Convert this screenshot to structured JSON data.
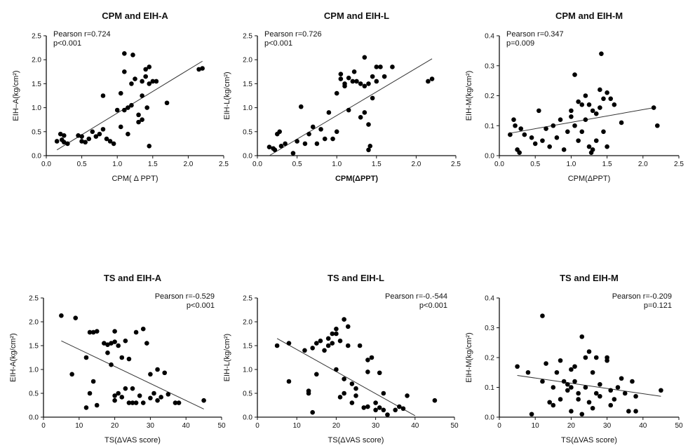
{
  "chart_data": [
    {
      "type": "scatter",
      "title": "CPM and EIH-A",
      "xlabel": "CPM( Δ PPT)",
      "ylabel": "EIH–A(kg/cm²)",
      "xlim": [
        0,
        2.5
      ],
      "ylim": [
        0,
        2.5
      ],
      "xticks": [
        "0.0",
        "0.5",
        "1.0",
        "1.5",
        "2.0",
        "2.5"
      ],
      "yticks": [
        "0.0",
        "0.5",
        "1.0",
        "1.5",
        "2.0",
        "2.5"
      ],
      "stat1": "Pearson r=0.724",
      "stat2": "p<0.001",
      "annot_align": "left",
      "trend": [
        [
          0.15,
          0.12
        ],
        [
          2.2,
          1.97
        ]
      ],
      "points": [
        [
          0.15,
          0.3
        ],
        [
          0.2,
          0.45
        ],
        [
          0.22,
          0.33
        ],
        [
          0.25,
          0.42
        ],
        [
          0.25,
          0.28
        ],
        [
          0.3,
          0.25
        ],
        [
          0.45,
          0.42
        ],
        [
          0.5,
          0.3
        ],
        [
          0.5,
          0.4
        ],
        [
          0.55,
          0.28
        ],
        [
          0.6,
          0.35
        ],
        [
          0.65,
          0.5
        ],
        [
          0.7,
          0.4
        ],
        [
          0.75,
          0.45
        ],
        [
          0.8,
          1.25
        ],
        [
          0.8,
          0.55
        ],
        [
          0.85,
          0.35
        ],
        [
          0.9,
          0.3
        ],
        [
          0.95,
          0.25
        ],
        [
          1.0,
          0.95
        ],
        [
          1.05,
          0.6
        ],
        [
          1.05,
          1.3
        ],
        [
          1.1,
          1.75
        ],
        [
          1.1,
          2.13
        ],
        [
          1.1,
          0.95
        ],
        [
          1.15,
          1.0
        ],
        [
          1.15,
          0.45
        ],
        [
          1.2,
          1.05
        ],
        [
          1.2,
          1.5
        ],
        [
          1.22,
          2.1
        ],
        [
          1.25,
          1.6
        ],
        [
          1.3,
          0.85
        ],
        [
          1.3,
          0.7
        ],
        [
          1.35,
          1.25
        ],
        [
          1.35,
          1.55
        ],
        [
          1.35,
          0.75
        ],
        [
          1.4,
          1.8
        ],
        [
          1.4,
          1.65
        ],
        [
          1.42,
          1.0
        ],
        [
          1.45,
          1.85
        ],
        [
          1.45,
          1.5
        ],
        [
          1.45,
          0.2
        ],
        [
          1.5,
          1.55
        ],
        [
          1.55,
          1.55
        ],
        [
          1.7,
          1.1
        ],
        [
          2.15,
          1.8
        ],
        [
          2.2,
          1.82
        ]
      ]
    },
    {
      "type": "scatter",
      "title": "CPM and EIH-L",
      "xlabel": "CPM(ΔPPT)",
      "ylabel": "EIH-L(kg/cm²)",
      "xlim": [
        0,
        2.5
      ],
      "ylim": [
        0,
        2.5
      ],
      "xticks": [
        "0.0",
        "0.5",
        "1.0",
        "1.5",
        "2.0",
        "2.5"
      ],
      "yticks": [
        "0.0",
        "0.5",
        "1.0",
        "1.5",
        "2.0",
        "2.5"
      ],
      "stat1": "Pearson r=0.726",
      "stat2": "p<0.001",
      "annot_align": "left",
      "trend": [
        [
          0.15,
          0.0
        ],
        [
          2.2,
          2.02
        ]
      ],
      "points": [
        [
          0.15,
          0.18
        ],
        [
          0.2,
          0.15
        ],
        [
          0.22,
          0.12
        ],
        [
          0.25,
          0.45
        ],
        [
          0.28,
          0.5
        ],
        [
          0.3,
          0.2
        ],
        [
          0.35,
          0.25
        ],
        [
          0.45,
          0.05
        ],
        [
          0.5,
          0.3
        ],
        [
          0.55,
          1.02
        ],
        [
          0.6,
          0.25
        ],
        [
          0.65,
          0.45
        ],
        [
          0.7,
          0.6
        ],
        [
          0.75,
          0.25
        ],
        [
          0.8,
          0.55
        ],
        [
          0.85,
          0.35
        ],
        [
          0.9,
          0.9
        ],
        [
          0.95,
          0.35
        ],
        [
          1.0,
          0.5
        ],
        [
          1.0,
          1.3
        ],
        [
          1.05,
          1.6
        ],
        [
          1.05,
          1.7
        ],
        [
          1.1,
          1.45
        ],
        [
          1.1,
          1.5
        ],
        [
          1.15,
          0.95
        ],
        [
          1.15,
          1.62
        ],
        [
          1.2,
          1.55
        ],
        [
          1.22,
          1.75
        ],
        [
          1.25,
          1.55
        ],
        [
          1.3,
          0.8
        ],
        [
          1.3,
          1.5
        ],
        [
          1.35,
          2.05
        ],
        [
          1.35,
          1.45
        ],
        [
          1.4,
          0.65
        ],
        [
          1.4,
          1.5
        ],
        [
          1.42,
          0.2
        ],
        [
          1.45,
          1.2
        ],
        [
          1.45,
          1.65
        ],
        [
          1.5,
          1.85
        ],
        [
          1.5,
          1.55
        ],
        [
          1.55,
          1.85
        ],
        [
          1.6,
          1.65
        ],
        [
          1.7,
          1.85
        ],
        [
          2.15,
          1.55
        ],
        [
          2.2,
          1.6
        ],
        [
          1.4,
          0.12
        ],
        [
          1.35,
          0.9
        ]
      ]
    },
    {
      "type": "scatter",
      "title": "CPM and EIH-M",
      "xlabel": "CPM(ΔPPT)",
      "ylabel": "EIH-M(kg/cm²)",
      "xlim": [
        0,
        2.5
      ],
      "ylim": [
        0,
        0.4
      ],
      "xticks": [
        "0.0",
        "0.5",
        "1.0",
        "1.5",
        "2.0",
        "2.5"
      ],
      "yticks": [
        "0.0",
        "0.1",
        "0.2",
        "0.3",
        "0.4"
      ],
      "stat1": "Pearson r=0.347",
      "stat2": "p=0.009",
      "annot_align": "left",
      "trend": [
        [
          0.15,
          0.075
        ],
        [
          2.15,
          0.16
        ]
      ],
      "points": [
        [
          0.15,
          0.07
        ],
        [
          0.2,
          0.12
        ],
        [
          0.22,
          0.1
        ],
        [
          0.25,
          0.02
        ],
        [
          0.28,
          0.01
        ],
        [
          0.3,
          0.09
        ],
        [
          0.35,
          0.07
        ],
        [
          0.45,
          0.06
        ],
        [
          0.5,
          0.04
        ],
        [
          0.55,
          0.15
        ],
        [
          0.6,
          0.05
        ],
        [
          0.65,
          0.09
        ],
        [
          0.7,
          0.03
        ],
        [
          0.75,
          0.1
        ],
        [
          0.8,
          0.06
        ],
        [
          0.85,
          0.12
        ],
        [
          0.9,
          0.02
        ],
        [
          0.95,
          0.08
        ],
        [
          1.0,
          0.15
        ],
        [
          1.0,
          0.13
        ],
        [
          1.05,
          0.27
        ],
        [
          1.05,
          0.1
        ],
        [
          1.1,
          0.18
        ],
        [
          1.1,
          0.05
        ],
        [
          1.15,
          0.17
        ],
        [
          1.15,
          0.08
        ],
        [
          1.2,
          0.2
        ],
        [
          1.2,
          0.12
        ],
        [
          1.25,
          0.03
        ],
        [
          1.28,
          0.01
        ],
        [
          1.3,
          0.15
        ],
        [
          1.3,
          0.02
        ],
        [
          1.35,
          0.14
        ],
        [
          1.35,
          0.05
        ],
        [
          1.4,
          0.22
        ],
        [
          1.4,
          0.16
        ],
        [
          1.42,
          0.34
        ],
        [
          1.45,
          0.19
        ],
        [
          1.45,
          0.08
        ],
        [
          1.5,
          0.03
        ],
        [
          1.5,
          0.21
        ],
        [
          1.55,
          0.19
        ],
        [
          1.6,
          0.17
        ],
        [
          1.7,
          0.11
        ],
        [
          2.15,
          0.16
        ],
        [
          2.2,
          0.1
        ],
        [
          1.25,
          0.17
        ]
      ]
    },
    {
      "type": "scatter",
      "title": "TS and EIH-A",
      "xlabel": "TS(ΔVAS score)",
      "ylabel": "EIH-A(kg/cm²)",
      "xlim": [
        0,
        50
      ],
      "ylim": [
        0,
        2.5
      ],
      "xticks": [
        "0",
        "10",
        "20",
        "30",
        "40",
        "50"
      ],
      "yticks": [
        "0.0",
        "0.5",
        "1.0",
        "1.5",
        "2.0",
        "2.5"
      ],
      "stat1": "Pearson r=-0.529",
      "stat2": "p<0.001",
      "annot_align": "right",
      "trend": [
        [
          5,
          1.6
        ],
        [
          45,
          0.17
        ]
      ],
      "points": [
        [
          5,
          2.13
        ],
        [
          8,
          0.9
        ],
        [
          9,
          2.08
        ],
        [
          12,
          1.25
        ],
        [
          12,
          0.2
        ],
        [
          13,
          0.5
        ],
        [
          13,
          1.78
        ],
        [
          14,
          0.75
        ],
        [
          14,
          1.78
        ],
        [
          15,
          1.8
        ],
        [
          15,
          0.25
        ],
        [
          17,
          1.55
        ],
        [
          18,
          1.52
        ],
        [
          18,
          1.35
        ],
        [
          19,
          1.55
        ],
        [
          19,
          1.1
        ],
        [
          20,
          1.58
        ],
        [
          20,
          1.8
        ],
        [
          20,
          0.35
        ],
        [
          20,
          0.45
        ],
        [
          21,
          0.5
        ],
        [
          21,
          1.5
        ],
        [
          22,
          0.42
        ],
        [
          22,
          1.25
        ],
        [
          23,
          0.6
        ],
        [
          23,
          1.6
        ],
        [
          24,
          0.3
        ],
        [
          24,
          1.22
        ],
        [
          25,
          0.6
        ],
        [
          25,
          0.3
        ],
        [
          26,
          1.78
        ],
        [
          26,
          0.3
        ],
        [
          27,
          0.45
        ],
        [
          28,
          1.85
        ],
        [
          28,
          0.3
        ],
        [
          30,
          0.4
        ],
        [
          30,
          0.9
        ],
        [
          31,
          0.5
        ],
        [
          32,
          0.35
        ],
        [
          32,
          1.0
        ],
        [
          33,
          0.42
        ],
        [
          34,
          0.93
        ],
        [
          35,
          0.48
        ],
        [
          37,
          0.3
        ],
        [
          38,
          0.3
        ],
        [
          45,
          0.35
        ],
        [
          29,
          1.55
        ]
      ]
    },
    {
      "type": "scatter",
      "title": "TS and EIH-L",
      "xlabel": "TS(ΔVAS score)",
      "ylabel": "EIH-L(kg/cm²)",
      "xlim": [
        0,
        50
      ],
      "ylim": [
        0,
        2.5
      ],
      "xticks": [
        "0",
        "10",
        "20",
        "30",
        "40",
        "50"
      ],
      "yticks": [
        "0.0",
        "0.5",
        "1.0",
        "1.5",
        "2.0",
        "2.5"
      ],
      "stat1": "Pearson r=-0.-544",
      "stat2": "p<0.001",
      "annot_align": "right",
      "trend": [
        [
          5,
          1.65
        ],
        [
          40,
          0.03
        ]
      ],
      "points": [
        [
          5,
          1.5
        ],
        [
          8,
          0.75
        ],
        [
          8,
          1.55
        ],
        [
          12,
          1.4
        ],
        [
          13,
          0.55
        ],
        [
          13,
          0.5
        ],
        [
          14,
          1.45
        ],
        [
          14,
          0.1
        ],
        [
          15,
          1.55
        ],
        [
          15,
          0.9
        ],
        [
          16,
          1.6
        ],
        [
          17,
          1.4
        ],
        [
          18,
          1.5
        ],
        [
          18,
          1.65
        ],
        [
          19,
          1.55
        ],
        [
          19,
          1.75
        ],
        [
          20,
          1.85
        ],
        [
          20,
          1.75
        ],
        [
          20,
          1.0
        ],
        [
          21,
          1.6
        ],
        [
          21,
          0.42
        ],
        [
          22,
          2.05
        ],
        [
          22,
          0.5
        ],
        [
          23,
          1.9
        ],
        [
          23,
          1.5
        ],
        [
          24,
          0.7
        ],
        [
          24,
          0.3
        ],
        [
          25,
          0.45
        ],
        [
          25,
          0.6
        ],
        [
          26,
          1.5
        ],
        [
          27,
          0.2
        ],
        [
          28,
          1.2
        ],
        [
          28,
          0.22
        ],
        [
          29,
          1.25
        ],
        [
          30,
          0.3
        ],
        [
          30,
          0.15
        ],
        [
          31,
          0.2
        ],
        [
          31,
          0.93
        ],
        [
          32,
          0.15
        ],
        [
          32,
          0.5
        ],
        [
          33,
          0.05
        ],
        [
          35,
          0.15
        ],
        [
          36,
          0.22
        ],
        [
          37,
          0.18
        ],
        [
          38,
          0.45
        ],
        [
          45,
          0.35
        ],
        [
          28,
          0.95
        ],
        [
          22,
          0.8
        ]
      ]
    },
    {
      "type": "scatter",
      "title": "TS and EIH-M",
      "xlabel": "TS(ΔVAS score)",
      "ylabel": "EIH-M(kg/cm²)",
      "xlim": [
        0,
        50
      ],
      "ylim": [
        0,
        0.4
      ],
      "xticks": [
        "0",
        "10",
        "20",
        "30",
        "40",
        "50"
      ],
      "yticks": [
        "0.0",
        "0.1",
        "0.2",
        "0.3",
        "0.4"
      ],
      "stat1": "Pearson r=-0.209",
      "stat2": "p=0.121",
      "annot_align": "right",
      "trend": [
        [
          5,
          0.14
        ],
        [
          45,
          0.07
        ]
      ],
      "points": [
        [
          5,
          0.17
        ],
        [
          8,
          0.15
        ],
        [
          9,
          0.01
        ],
        [
          12,
          0.34
        ],
        [
          12,
          0.12
        ],
        [
          13,
          0.18
        ],
        [
          14,
          0.05
        ],
        [
          15,
          0.1
        ],
        [
          15,
          0.04
        ],
        [
          16,
          0.15
        ],
        [
          17,
          0.06
        ],
        [
          17,
          0.19
        ],
        [
          18,
          0.12
        ],
        [
          19,
          0.09
        ],
        [
          19,
          0.11
        ],
        [
          20,
          0.02
        ],
        [
          20,
          0.16
        ],
        [
          20,
          0.1
        ],
        [
          21,
          0.12
        ],
        [
          21,
          0.17
        ],
        [
          22,
          0.08
        ],
        [
          22,
          0.06
        ],
        [
          23,
          0.27
        ],
        [
          23,
          0.01
        ],
        [
          24,
          0.1
        ],
        [
          24,
          0.2
        ],
        [
          25,
          0.05
        ],
        [
          25,
          0.22
        ],
        [
          26,
          0.03
        ],
        [
          26,
          0.15
        ],
        [
          27,
          0.08
        ],
        [
          27,
          0.2
        ],
        [
          28,
          0.07
        ],
        [
          28,
          0.11
        ],
        [
          30,
          0.2
        ],
        [
          30,
          0.19
        ],
        [
          31,
          0.09
        ],
        [
          31,
          0.04
        ],
        [
          32,
          0.06
        ],
        [
          33,
          0.1
        ],
        [
          34,
          0.13
        ],
        [
          35,
          0.08
        ],
        [
          36,
          0.02
        ],
        [
          37,
          0.12
        ],
        [
          38,
          0.07
        ],
        [
          38,
          0.02
        ],
        [
          45,
          0.09
        ]
      ]
    }
  ]
}
